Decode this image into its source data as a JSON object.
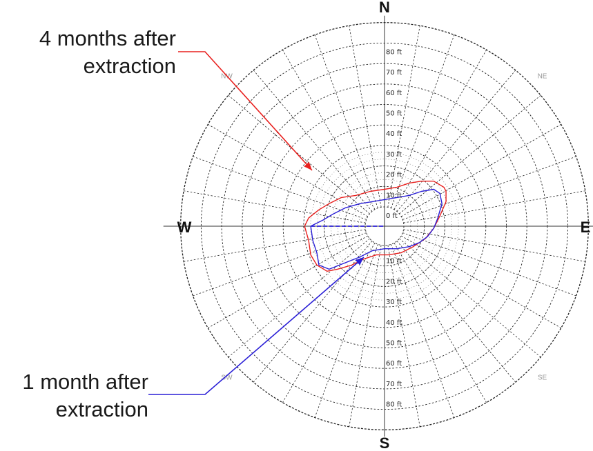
{
  "compass": {
    "north": "N",
    "south": "S",
    "east": "E",
    "west": "W",
    "ne": "NE",
    "nw": "NW",
    "se": "SE",
    "sw": "SW"
  },
  "ring_labels": [
    "0 ft",
    "10 ft",
    "20 ft",
    "30 ft",
    "40 ft",
    "50 ft",
    "60 ft",
    "70 ft",
    "80 ft"
  ],
  "annotations": {
    "four_month": {
      "line1": "4 months after",
      "line2": "extraction",
      "color": "#e8201e"
    },
    "one_month": {
      "line1": "1 month after",
      "line2": "extraction",
      "color": "#2a1fd6"
    }
  },
  "chart_data": {
    "type": "polar",
    "rings_ft": [
      0,
      10,
      20,
      30,
      40,
      50,
      60,
      70,
      80,
      90
    ],
    "series": [
      {
        "name": "4 months after extraction",
        "color": "#e8201e",
        "points_ft": [
          [
            -39,
            0
          ],
          [
            -37,
            -7
          ],
          [
            -36,
            -14
          ],
          [
            -33,
            -19
          ],
          [
            -28,
            -22
          ],
          [
            -23,
            -21
          ],
          [
            -16,
            -19
          ],
          [
            -10,
            -16
          ],
          [
            -4,
            -14
          ],
          [
            2,
            -14
          ],
          [
            8,
            -13
          ],
          [
            14,
            -10
          ],
          [
            20,
            -6
          ],
          [
            24,
            -1
          ],
          [
            27,
            5
          ],
          [
            30,
            12
          ],
          [
            30,
            17
          ],
          [
            29,
            19
          ],
          [
            24,
            22
          ],
          [
            18,
            22
          ],
          [
            12,
            21
          ],
          [
            6,
            19
          ],
          [
            0,
            18
          ],
          [
            -7,
            17
          ],
          [
            -14,
            15
          ],
          [
            -21,
            14
          ],
          [
            -27,
            11
          ],
          [
            -32,
            8
          ],
          [
            -37,
            4
          ],
          [
            -39,
            0
          ]
        ]
      },
      {
        "name": "1 month after extraction",
        "color": "#2a1fd6",
        "points_ft": [
          [
            -36,
            0
          ],
          [
            -35,
            -7
          ],
          [
            -33,
            -13
          ],
          [
            -32,
            -19
          ],
          [
            -27,
            -21
          ],
          [
            -22,
            -19
          ],
          [
            -17,
            -17
          ],
          [
            -12,
            -15
          ],
          [
            -6,
            -12
          ],
          [
            0,
            -11
          ],
          [
            6,
            -11
          ],
          [
            12,
            -10
          ],
          [
            17,
            -8
          ],
          [
            21,
            -5
          ],
          [
            24,
            -1
          ],
          [
            26,
            4
          ],
          [
            28,
            11
          ],
          [
            27,
            16
          ],
          [
            24,
            18
          ],
          [
            18,
            17
          ],
          [
            12,
            15
          ],
          [
            6,
            14
          ],
          [
            0,
            13
          ],
          [
            -6,
            12
          ],
          [
            -12,
            11
          ],
          [
            -19,
            9
          ],
          [
            -25,
            6
          ],
          [
            -30,
            3
          ],
          [
            -34,
            1
          ],
          [
            -36,
            0
          ]
        ]
      }
    ],
    "dashed_baseline": {
      "from_ft": -36,
      "to_ft": 0,
      "color": "#2a1fd6"
    }
  }
}
